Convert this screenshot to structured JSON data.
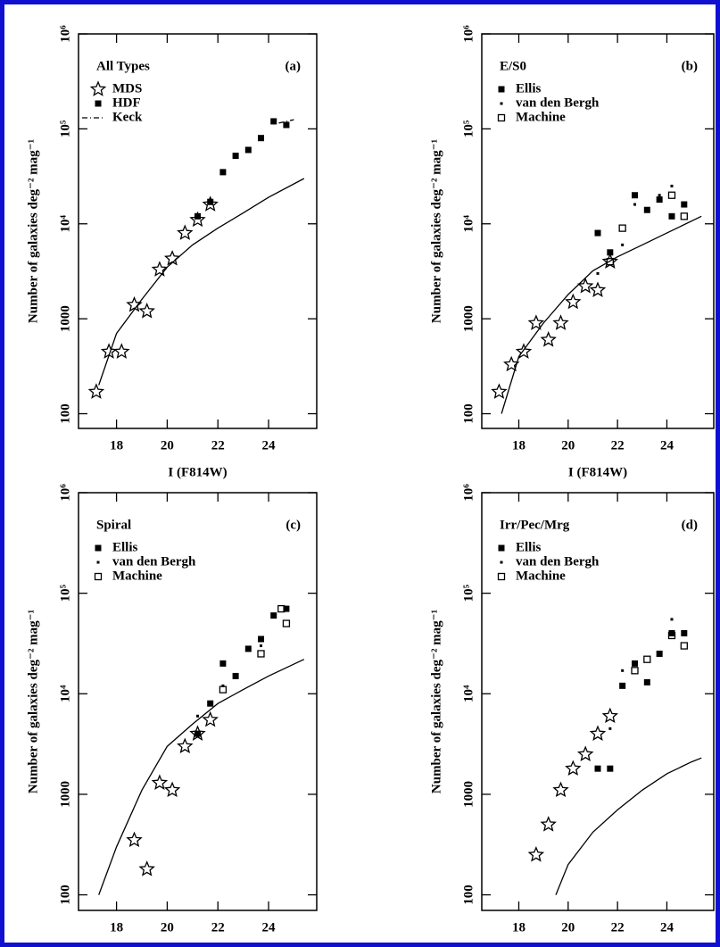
{
  "chart_data": [
    {
      "type": "scatter",
      "title": "All Types",
      "panel_label": "(a)",
      "xlabel": "I (F814W)",
      "ylabel": "Number of galaxies deg⁻² mag⁻¹",
      "log_y": true,
      "xlim": [
        16.5,
        25.9
      ],
      "ylim": [
        70,
        1000000
      ],
      "xticks": [
        18,
        20,
        22,
        24
      ],
      "yticks": [
        100,
        1000,
        {
          "value": 10000,
          "label": "10⁴"
        },
        {
          "value": 100000,
          "label": "10⁵"
        },
        {
          "value": 1000000,
          "label": "10⁶"
        }
      ],
      "series": [
        {
          "name": "MDS",
          "marker": "star",
          "x": [
            17.2,
            17.7,
            18.2,
            18.7,
            19.2,
            19.7,
            20.2,
            20.7,
            21.2,
            21.7
          ],
          "values": [
            170,
            450,
            450,
            1400,
            1200,
            3300,
            4300,
            8000,
            11000,
            16000
          ]
        },
        {
          "name": "HDF",
          "marker": "square",
          "x": [
            21.2,
            21.7,
            22.2,
            22.7,
            23.2,
            23.7,
            24.2,
            24.7
          ],
          "values": [
            12000,
            17000,
            35000,
            52000,
            60000,
            80000,
            120000,
            110000
          ]
        },
        {
          "name": "Keck",
          "marker": "dashdot",
          "x": [
            24.4,
            25.0
          ],
          "values": [
            115000,
            125000
          ]
        },
        {
          "marker": "line",
          "x": [
            17.3,
            18,
            19,
            20,
            21,
            22,
            23,
            24,
            25.4
          ],
          "values": [
            200,
            700,
            1600,
            3500,
            6000,
            9000,
            13000,
            19000,
            30000
          ]
        }
      ]
    },
    {
      "type": "scatter",
      "title": "E/S0",
      "panel_label": "(b)",
      "xlabel": "I (F814W)",
      "ylabel": "Number of galaxies deg⁻² mag⁻¹",
      "log_y": true,
      "xlim": [
        16.5,
        25.9
      ],
      "ylim": [
        70,
        1000000
      ],
      "xticks": [
        18,
        20,
        22,
        24
      ],
      "yticks": [
        100,
        1000,
        {
          "value": 10000,
          "label": "10⁴"
        },
        {
          "value": 100000,
          "label": "10⁵"
        },
        {
          "value": 1000000,
          "label": "10⁶"
        }
      ],
      "series": [
        {
          "name": "Ellis",
          "marker": "square",
          "x": [
            21.2,
            21.7,
            22.7,
            23.2,
            23.7,
            24.2,
            24.7
          ],
          "values": [
            8000,
            5000,
            20000,
            14000,
            18000,
            12000,
            16000
          ]
        },
        {
          "name": "van den Bergh",
          "marker": "dot",
          "x": [
            21.2,
            22.2,
            22.7,
            23.7,
            24.2
          ],
          "values": [
            3000,
            6000,
            16000,
            20000,
            25000
          ]
        },
        {
          "name": "Machine",
          "marker": "open-square",
          "x": [
            21.7,
            22.2,
            24.2,
            24.7
          ],
          "values": [
            4000,
            9000,
            20000,
            12000
          ]
        },
        {
          "marker": "star",
          "x": [
            17.2,
            17.7,
            18.2,
            18.7,
            19.2,
            19.7,
            20.2,
            20.7,
            21.2,
            21.7
          ],
          "values": [
            170,
            330,
            450,
            900,
            600,
            900,
            1500,
            2200,
            2000,
            4000
          ]
        },
        {
          "marker": "line",
          "x": [
            17.3,
            18,
            19,
            20,
            21,
            22,
            23,
            24,
            25.4
          ],
          "values": [
            100,
            400,
            900,
            1800,
            3200,
            4500,
            6000,
            8000,
            12000
          ]
        }
      ]
    },
    {
      "type": "scatter",
      "title": "Spiral",
      "panel_label": "(c)",
      "xlabel": "I (F814W)",
      "ylabel": "Number of galaxies deg⁻² mag⁻¹",
      "log_y": true,
      "xlim": [
        16.5,
        25.9
      ],
      "ylim": [
        70,
        1000000
      ],
      "xticks": [
        18,
        20,
        22,
        24
      ],
      "yticks": [
        100,
        1000,
        {
          "value": 10000,
          "label": "10⁴"
        },
        {
          "value": 100000,
          "label": "10⁵"
        },
        {
          "value": 1000000,
          "label": "10⁶"
        }
      ],
      "series": [
        {
          "name": "Ellis",
          "marker": "square",
          "x": [
            21.2,
            21.7,
            22.2,
            22.7,
            23.2,
            23.7,
            24.2,
            24.7
          ],
          "values": [
            4000,
            8000,
            20000,
            15000,
            28000,
            35000,
            60000,
            70000
          ]
        },
        {
          "name": "van den Bergh",
          "marker": "dot",
          "x": [
            21.2,
            22.2,
            23.7
          ],
          "values": [
            6000,
            12000,
            30000
          ]
        },
        {
          "name": "Machine",
          "marker": "open-square",
          "x": [
            22.2,
            23.7,
            24.5,
            24.7
          ],
          "values": [
            11000,
            25000,
            70000,
            50000
          ]
        },
        {
          "marker": "star",
          "x": [
            18.7,
            19.2,
            19.7,
            20.2,
            20.7,
            21.2,
            21.7
          ],
          "values": [
            350,
            180,
            1300,
            1100,
            3000,
            4000,
            5500
          ]
        },
        {
          "marker": "line",
          "x": [
            17.3,
            18,
            19,
            20,
            21,
            22,
            23,
            24,
            25.4
          ],
          "values": [
            100,
            300,
            1100,
            3000,
            5000,
            8000,
            11000,
            15000,
            22000
          ]
        }
      ]
    },
    {
      "type": "scatter",
      "title": "Irr/Pec/Mrg",
      "panel_label": "(d)",
      "xlabel": "I (F814W)",
      "ylabel": "Number of galaxies deg⁻² mag⁻¹",
      "log_y": true,
      "xlim": [
        16.5,
        25.9
      ],
      "ylim": [
        70,
        1000000
      ],
      "xticks": [
        18,
        20,
        22,
        24
      ],
      "yticks": [
        100,
        1000,
        {
          "value": 10000,
          "label": "10⁴"
        },
        {
          "value": 100000,
          "label": "10⁵"
        },
        {
          "value": 1000000,
          "label": "10⁶"
        }
      ],
      "series": [
        {
          "name": "Ellis",
          "marker": "square",
          "x": [
            21.2,
            21.7,
            22.2,
            22.7,
            23.2,
            23.7,
            24.2,
            24.7
          ],
          "values": [
            1800,
            1800,
            12000,
            20000,
            13000,
            25000,
            40000,
            40000
          ]
        },
        {
          "name": "van den Bergh",
          "marker": "dot",
          "x": [
            21.7,
            22.2,
            24.2
          ],
          "values": [
            4500,
            17000,
            55000
          ]
        },
        {
          "name": "Machine",
          "marker": "open-square",
          "x": [
            22.7,
            23.2,
            24.2,
            24.7
          ],
          "values": [
            17000,
            22000,
            38000,
            30000
          ]
        },
        {
          "marker": "star",
          "x": [
            18.7,
            19.2,
            19.7,
            20.2,
            20.7,
            21.2,
            21.7
          ],
          "values": [
            250,
            500,
            1100,
            1800,
            2500,
            4000,
            6000
          ]
        },
        {
          "marker": "line",
          "x": [
            19.5,
            20,
            21,
            22,
            23,
            24,
            25,
            25.4
          ],
          "values": [
            100,
            200,
            420,
            700,
            1100,
            1600,
            2100,
            2300
          ]
        }
      ]
    }
  ]
}
